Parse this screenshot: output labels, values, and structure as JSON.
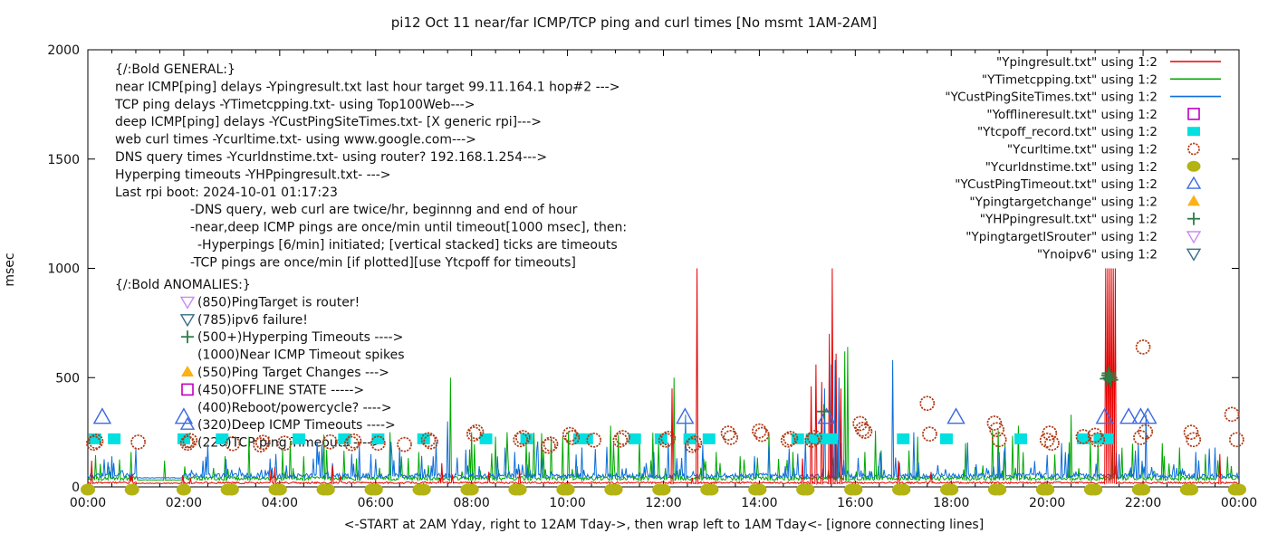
{
  "title": "pi12 Oct 11  near/far ICMP/TCP ping and curl times [No msmt 1AM-2AM]",
  "y_axis": {
    "label": "msec",
    "ticks": [
      0,
      500,
      1000,
      1500,
      2000
    ],
    "max": 2000
  },
  "x_axis": {
    "caption": "<-START at 2AM Yday, right to 12AM Tday->, then wrap left to 1AM Tday<- [ignore connecting lines]",
    "tick_hours": [
      0,
      2,
      4,
      6,
      8,
      10,
      12,
      14,
      16,
      18,
      20,
      22,
      24
    ],
    "tick_labels": [
      "00:00",
      "02:00",
      "04:00",
      "06:00",
      "08:00",
      "10:00",
      "12:00",
      "14:00",
      "16:00",
      "18:00",
      "20:00",
      "22:00",
      "00:00"
    ],
    "minor_tick_step_hours": 0.5
  },
  "legend": [
    {
      "label": "\"Ypingresult.txt\" using 1:2",
      "glyph": "line",
      "color": "#e60000"
    },
    {
      "label": "\"YTimetcpping.txt\" using 1:2",
      "glyph": "line",
      "color": "#00a800"
    },
    {
      "label": "\"YCustPingSiteTimes.txt\" using 1:2",
      "glyph": "line",
      "color": "#0d6edb"
    },
    {
      "label": "\"Yofflineresult.txt\" using 1:2",
      "glyph": "square-open",
      "color": "#c000c0"
    },
    {
      "label": "\"Ytcpoff_record.txt\" using 1:2",
      "glyph": "square-fill",
      "color": "#00e0e0"
    },
    {
      "label": "\"Ycurltime.txt\" using 1:2",
      "glyph": "circle-open",
      "color": "#b03a14"
    },
    {
      "label": "\"Ycurldnstime.txt\" using 1:2",
      "glyph": "circle-fill",
      "color": "#b3b314"
    },
    {
      "label": "\"YCustPingTimeout.txt\" using 1:2",
      "glyph": "triup-open",
      "color": "#3f6be0"
    },
    {
      "label": "\"Ypingtargetchange\" using 1:2",
      "glyph": "triup-fill",
      "color": "#fbb117"
    },
    {
      "label": "\"YHPpingresult.txt\" using 1:2",
      "glyph": "plus",
      "color": "#2a7d46"
    },
    {
      "label": "\"YpingtargetISrouter\" using 1:2",
      "glyph": "tridown-open",
      "color": "#c98af5"
    },
    {
      "label": "\"Ynoipv6\" using 1:2",
      "glyph": "tridown-open",
      "color": "#376b85"
    }
  ],
  "annotations": {
    "general": [
      {
        "text": "{/:Bold GENERAL:}",
        "indent": 0
      },
      {
        "text": "near ICMP[ping] delays -Ypingresult.txt last hour target 99.11.164.1 hop#2 --->",
        "indent": 0
      },
      {
        "text": "TCP ping delays -YTimetcpping.txt- using Top100Web--->",
        "indent": 0
      },
      {
        "text": "deep ICMP[ping] delays -YCustPingSiteTimes.txt- [X generic rpi]--->",
        "indent": 0
      },
      {
        "text": "web curl times -Ycurltime.txt- using www.google.com--->",
        "indent": 0
      },
      {
        "text": "DNS query times -Ycurldnstime.txt- using router? 192.168.1.254--->",
        "indent": 0
      },
      {
        "text": "Hyperping timeouts -YHPpingresult.txt- --->",
        "indent": 0
      },
      {
        "text": "Last rpi boot: 2024-10-01 01:17:23",
        "indent": 0
      },
      {
        "text": "-DNS query, web curl are twice/hr, beginnng and end of hour",
        "indent": 1
      },
      {
        "text": "-near,deep ICMP pings are once/min until timeout[1000 msec], then:",
        "indent": 1
      },
      {
        "text": "-Hyperpings [6/min] initiated; [vertical stacked] ticks are timeouts",
        "indent": 2
      },
      {
        "text": "-TCP pings are once/min [if plotted][use Ytcpoff for timeouts]",
        "indent": 1
      }
    ],
    "anomalies_header": "{/:Bold ANOMALIES:}",
    "anomalies": [
      {
        "icon": "tridown-open",
        "color": "#c98af5",
        "text": "(850)PingTarget is router!"
      },
      {
        "icon": "tridown-open",
        "color": "#376b85",
        "text": "(785)ipv6 failure!"
      },
      {
        "icon": "plus",
        "color": "#2a7d46",
        "text": "(500+)Hyperping Timeouts ---->"
      },
      {
        "icon": "none",
        "color": "",
        "text": "(1000)Near ICMP Timeout spikes"
      },
      {
        "icon": "triup-fill",
        "color": "#fbb117",
        "text": "(550)Ping Target Changes --->"
      },
      {
        "icon": "square-open",
        "color": "#c000c0",
        "text": "(450)OFFLINE STATE ----->"
      },
      {
        "icon": "none",
        "color": "",
        "text": "(400)Reboot/powercycle? ---->"
      },
      {
        "icon": "triup-open",
        "color": "#3f6be0",
        "text": "(320)Deep ICMP Timeouts ---->"
      },
      {
        "icon": "circle-open",
        "color": "#b03a14",
        "text": "(220)TCP ping Timeouts ---->"
      }
    ]
  },
  "chart_data": {
    "type": "line",
    "x_unit": "hours 00:00-24:00",
    "y_unit": "msec",
    "y_max": 2000,
    "series": [
      {
        "name": "YTimetcpping.txt",
        "color": "#00a800",
        "base": 30,
        "noise": 18,
        "spike_prob": 0.09,
        "spike_min": 40,
        "spike_range": 190,
        "seed": 22,
        "spikes": [
          [
            0.9,
            160
          ],
          [
            1.6,
            120
          ],
          [
            2.85,
            140
          ],
          [
            3.35,
            230
          ],
          [
            4.05,
            170
          ],
          [
            4.5,
            140
          ],
          [
            5.6,
            130
          ],
          [
            6.3,
            250
          ],
          [
            6.9,
            160
          ],
          [
            7.55,
            500
          ],
          [
            8.0,
            250
          ],
          [
            8.5,
            230
          ],
          [
            9.2,
            160
          ],
          [
            9.9,
            230
          ],
          [
            10.9,
            280
          ],
          [
            11.5,
            230
          ],
          [
            12.21,
            500
          ],
          [
            13.1,
            160
          ],
          [
            13.6,
            140
          ],
          [
            14.2,
            250
          ],
          [
            14.7,
            160
          ],
          [
            15.78,
            620
          ],
          [
            15.84,
            640
          ],
          [
            16.2,
            160
          ],
          [
            17.3,
            230
          ],
          [
            18.3,
            200
          ],
          [
            18.85,
            260
          ],
          [
            19.4,
            280
          ],
          [
            20.5,
            330
          ],
          [
            20.9,
            210
          ],
          [
            21.05,
            200
          ],
          [
            22.4,
            200
          ],
          [
            22.75,
            180
          ],
          [
            23.3,
            150
          ]
        ]
      },
      {
        "name": "YCustPingSiteTimes.txt",
        "color": "#0d6edb",
        "base": 40,
        "noise": 22,
        "spike_prob": 0.12,
        "spike_min": 30,
        "spike_range": 140,
        "seed": 33,
        "spikes": [
          [
            0.5,
            140
          ],
          [
            2.4,
            120
          ],
          [
            3.8,
            130
          ],
          [
            5.9,
            150
          ],
          [
            7.5,
            300
          ],
          [
            8.9,
            160
          ],
          [
            10.3,
            180
          ],
          [
            11.8,
            160
          ],
          [
            12.45,
            330
          ],
          [
            13.9,
            140
          ],
          [
            14.95,
            220
          ],
          [
            15.35,
            450
          ],
          [
            15.5,
            560
          ],
          [
            15.58,
            580
          ],
          [
            15.65,
            500
          ],
          [
            16.78,
            580
          ],
          [
            17.22,
            250
          ],
          [
            19.0,
            160
          ],
          [
            20.3,
            200
          ],
          [
            21.5,
            150
          ],
          [
            21.9,
            200
          ],
          [
            22.05,
            330
          ],
          [
            23.1,
            160
          ],
          [
            23.5,
            180
          ]
        ]
      },
      {
        "name": "Ypingresult.txt",
        "color": "#e60000",
        "base": 15,
        "noise": 8,
        "spike_prob": 0.012,
        "spike_min": 25,
        "spike_range": 70,
        "seed": 11,
        "spikes": [
          [
            0.07,
            120
          ],
          [
            3.9,
            90
          ],
          [
            5.1,
            100
          ],
          [
            9.0,
            80
          ],
          [
            12.18,
            450
          ],
          [
            12.69,
            1000
          ],
          [
            14.9,
            130
          ],
          [
            15.07,
            460
          ],
          [
            15.17,
            560
          ],
          [
            15.3,
            480
          ],
          [
            15.45,
            700
          ],
          [
            15.52,
            1000
          ],
          [
            15.6,
            610
          ],
          [
            15.7,
            450
          ],
          [
            16.9,
            120
          ],
          [
            21.22,
            1000
          ],
          [
            21.26,
            1000
          ],
          [
            21.3,
            1000
          ],
          [
            21.34,
            1000
          ],
          [
            21.38,
            1000
          ],
          [
            21.42,
            1000
          ],
          [
            23.6,
            150
          ]
        ]
      }
    ],
    "markers": {
      "tcp_timeout_squares": {
        "name": "Ytcpoff_record",
        "color": "#00e0e0",
        "y": 220,
        "hours": [
          0.15,
          0.55,
          2.0,
          2.8,
          4.4,
          5.35,
          6.05,
          7.0,
          8.3,
          9.15,
          10.25,
          10.4,
          11.4,
          11.95,
          12.55,
          12.95,
          14.8,
          15.1,
          15.3,
          15.5,
          17.0,
          17.9,
          19.45,
          20.75,
          21.1,
          21.25
        ]
      },
      "curl_circles": {
        "name": "Ycurltime",
        "color": "#b03a14",
        "points": [
          [
            0.12,
            200
          ],
          [
            0.17,
            208
          ],
          [
            1.05,
            205
          ],
          [
            2.08,
            200
          ],
          [
            2.13,
            212
          ],
          [
            3.02,
            198
          ],
          [
            3.6,
            192
          ],
          [
            3.65,
            204
          ],
          [
            4.1,
            200
          ],
          [
            5.05,
            206
          ],
          [
            5.5,
            198
          ],
          [
            5.55,
            210
          ],
          [
            6.05,
            200
          ],
          [
            6.6,
            194
          ],
          [
            7.1,
            216
          ],
          [
            7.15,
            206
          ],
          [
            8.05,
            242
          ],
          [
            8.1,
            252
          ],
          [
            9.02,
            216
          ],
          [
            9.07,
            226
          ],
          [
            9.6,
            186
          ],
          [
            9.65,
            196
          ],
          [
            10.05,
            240
          ],
          [
            10.1,
            226
          ],
          [
            10.55,
            214
          ],
          [
            11.1,
            214
          ],
          [
            11.15,
            226
          ],
          [
            12.05,
            214
          ],
          [
            12.1,
            222
          ],
          [
            12.6,
            190
          ],
          [
            12.65,
            200
          ],
          [
            13.35,
            246
          ],
          [
            13.4,
            226
          ],
          [
            14.0,
            256
          ],
          [
            14.05,
            240
          ],
          [
            14.6,
            214
          ],
          [
            14.65,
            222
          ],
          [
            15.1,
            214
          ],
          [
            15.15,
            226
          ],
          [
            16.1,
            290
          ],
          [
            16.15,
            264
          ],
          [
            16.2,
            254
          ],
          [
            17.5,
            382
          ],
          [
            17.55,
            242
          ],
          [
            18.9,
            292
          ],
          [
            18.95,
            262
          ],
          [
            19.0,
            216
          ],
          [
            20.0,
            214
          ],
          [
            20.05,
            246
          ],
          [
            20.1,
            200
          ],
          [
            20.75,
            230
          ],
          [
            21.0,
            236
          ],
          [
            21.05,
            216
          ],
          [
            21.95,
            226
          ],
          [
            22.0,
            640
          ],
          [
            22.05,
            252
          ],
          [
            23.0,
            250
          ],
          [
            23.05,
            216
          ],
          [
            23.85,
            332
          ],
          [
            23.95,
            216
          ]
        ]
      },
      "dns_dots": {
        "name": "Ycurldnstime",
        "color": "#b3b314",
        "y": 0,
        "hours": [
          0,
          0.92,
          2,
          2.92,
          3,
          3.92,
          4,
          4.92,
          5,
          5.92,
          6,
          6.92,
          7,
          7.92,
          8,
          8.92,
          9,
          9.92,
          10,
          10.92,
          11,
          11.92,
          12,
          12.92,
          13,
          13.92,
          14,
          14.92,
          15,
          15.92,
          16,
          16.92,
          17,
          17.92,
          18,
          18.92,
          19,
          19.92,
          20,
          20.92,
          21,
          21.92,
          22,
          22.92,
          23,
          23.92,
          24
        ]
      },
      "deep_icmp_triangles": {
        "name": "YCustPingTimeout",
        "color": "#3f6be0",
        "y": 320,
        "hours": [
          0.3,
          2.0,
          12.45,
          15.4,
          18.1,
          21.2,
          21.7,
          21.95,
          22.1
        ]
      },
      "hyperping_pluses": {
        "name": "YHPpingresult",
        "color": "#2a7d46",
        "points": [
          [
            15.35,
            345
          ],
          [
            21.25,
            495
          ],
          [
            21.28,
            510
          ],
          [
            21.31,
            500
          ],
          [
            21.29,
            520
          ],
          [
            21.33,
            490
          ]
        ]
      }
    }
  }
}
